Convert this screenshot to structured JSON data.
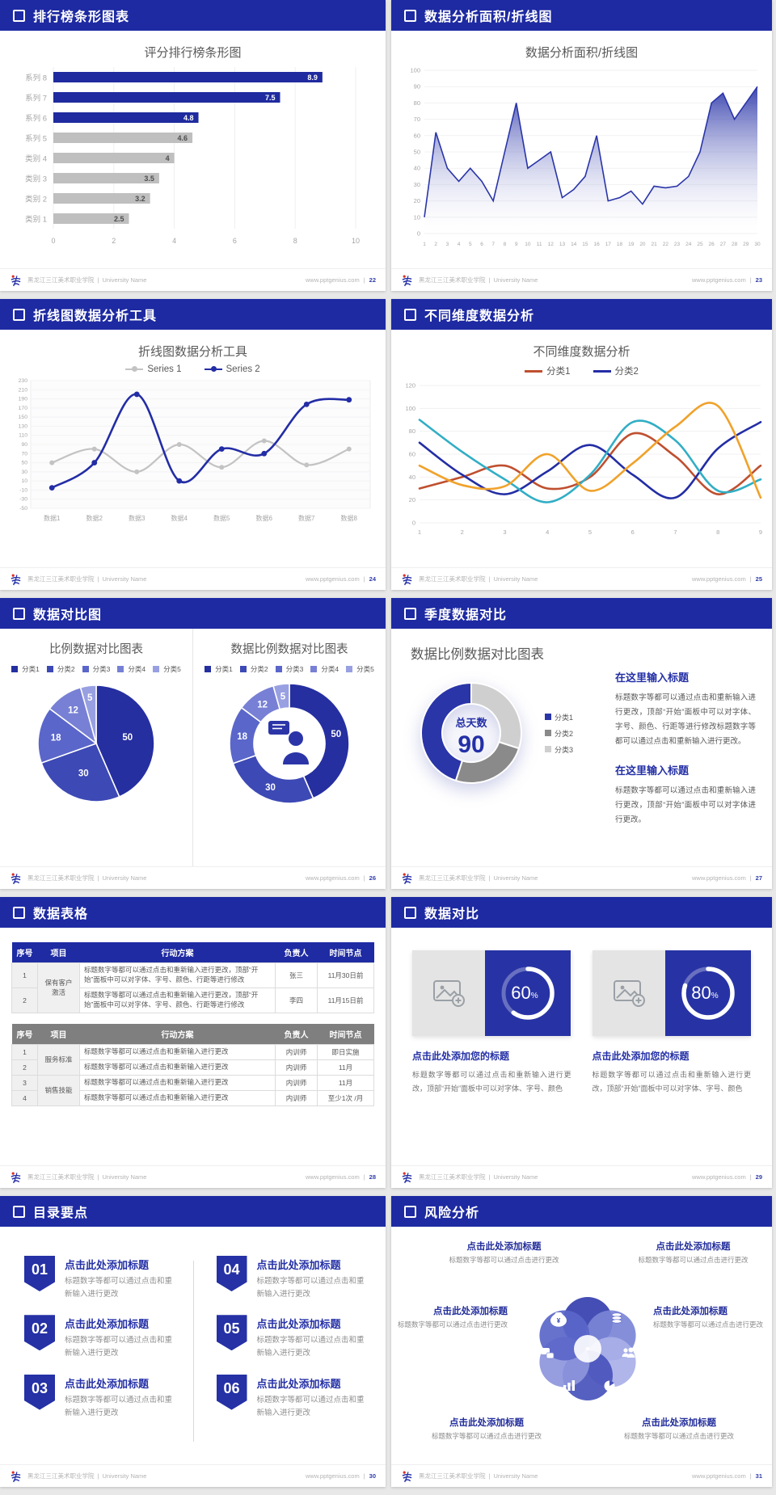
{
  "theme": {
    "header_blue": "#1e2aa2",
    "navy": "#222da0",
    "gray_bar": "#bfbfbf",
    "text_gray": "#595959",
    "muted": "#a6a6a6",
    "pie_colors": [
      "#252fa0",
      "#3d49b5",
      "#5a66c9",
      "#7780d5",
      "#98a0e2"
    ],
    "teal": "#31aec5",
    "orange": "#f0a22b",
    "red": "#bf4f2f",
    "donut_gray": "#8a8a8a",
    "donut_light": "#cfcfcf"
  },
  "footer": {
    "school": "黑龙江三江美术职业学院",
    "sep": "|",
    "university": "University Name",
    "site": "www.pptgenius.com"
  },
  "slides": [
    {
      "header": "排行榜条形图表",
      "page": "22",
      "chart_data": {
        "type": "bar",
        "orientation": "horizontal",
        "title": "评分排行榜条形图",
        "categories": [
          "系列 8",
          "系列 7",
          "系列 6",
          "系列 5",
          "类别 4",
          "类别 3",
          "类别 2",
          "类别 1"
        ],
        "values": [
          8.9,
          7.5,
          4.8,
          4.6,
          4,
          3.5,
          3.2,
          2.5
        ],
        "bar_colors": [
          "navy",
          "navy",
          "navy",
          "gray",
          "gray",
          "gray",
          "gray",
          "gray"
        ],
        "xlim": [
          0,
          10
        ],
        "xticks": [
          0,
          2,
          4,
          6,
          8,
          10
        ],
        "grid": true
      }
    },
    {
      "header": "数据分析面积/折线图",
      "page": "23",
      "chart_data": {
        "type": "area",
        "title": "数据分析面积/折线图",
        "x": [
          1,
          2,
          3,
          4,
          5,
          6,
          7,
          8,
          9,
          10,
          11,
          12,
          13,
          14,
          15,
          16,
          17,
          18,
          19,
          20,
          21,
          22,
          23,
          24,
          25,
          26,
          27,
          28,
          29,
          30
        ],
        "values": [
          10,
          62,
          40,
          32,
          40,
          32,
          20,
          50,
          80,
          40,
          45,
          50,
          22,
          27,
          35,
          60,
          20,
          22,
          26,
          18,
          29,
          28,
          29,
          35,
          50,
          80,
          86,
          70,
          80,
          90
        ],
        "ylim": [
          0,
          100
        ],
        "yticks": [
          0,
          10,
          20,
          30,
          40,
          50,
          60,
          70,
          80,
          90,
          100
        ],
        "grid": true
      }
    },
    {
      "header": "折线图数据分析工具",
      "page": "24",
      "chart_data": {
        "type": "line",
        "smooth": true,
        "title": "折线图数据分析工具",
        "categories": [
          "数据1",
          "数据2",
          "数据3",
          "数据4",
          "数据5",
          "数据6",
          "数据7",
          "数据8"
        ],
        "series": [
          {
            "name": "Series 1",
            "color": "#c3c3c3",
            "values": [
              50,
              80,
              30,
              90,
              40,
              98,
              45,
              80
            ]
          },
          {
            "name": "Series 2",
            "color": "#232da5",
            "values": [
              -5,
              50,
              200,
              10,
              80,
              70,
              178,
              188
            ]
          }
        ],
        "ylim": [
          -50,
          230
        ],
        "yticks": [
          230,
          210,
          190,
          170,
          150,
          130,
          110,
          90,
          70,
          50,
          30,
          10,
          -10,
          -30,
          -50
        ],
        "legend_position": "top",
        "grid": true
      }
    },
    {
      "header": "不同维度数据分析",
      "page": "25",
      "chart_data": {
        "type": "line",
        "smooth": true,
        "title": "不同维度数据分析",
        "x": [
          1,
          2,
          3,
          4,
          5,
          6,
          7,
          8,
          9
        ],
        "legend": [
          "分类1",
          "分类2"
        ],
        "series": [
          {
            "name": "分类1",
            "color": "#bf4f2f",
            "values": [
              30,
              40,
              50,
              30,
              40,
              78,
              58,
              25,
              50
            ]
          },
          {
            "name": "分类2",
            "color": "#232da5",
            "values": [
              70,
              42,
              25,
              45,
              68,
              42,
              22,
              65,
              88
            ]
          },
          {
            "name": "",
            "color": "#31aec5",
            "values": [
              90,
              62,
              38,
              18,
              42,
              88,
              72,
              28,
              38
            ]
          },
          {
            "name": "",
            "color": "#f0a22b",
            "values": [
              50,
              33,
              32,
              60,
              28,
              52,
              84,
              102,
              22
            ]
          }
        ],
        "ylim": [
          0,
          120
        ],
        "yticks": [
          0,
          20,
          40,
          60,
          80,
          100,
          120
        ],
        "legend_position": "top",
        "grid": true
      }
    },
    {
      "header": "数据对比图",
      "page": "26",
      "charts": [
        {
          "type": "pie",
          "title": "比例数据对比图表",
          "legend": [
            "分类1",
            "分类2",
            "分类3",
            "分类4",
            "分类5"
          ],
          "values": [
            50,
            30,
            18,
            12,
            5
          ]
        },
        {
          "type": "donut",
          "title": "数据比例数据对比图表",
          "legend": [
            "分类1",
            "分类2",
            "分类3",
            "分类4",
            "分类5"
          ],
          "values": [
            50,
            30,
            18,
            12,
            5
          ],
          "center_icon": "presenter-icon"
        }
      ]
    },
    {
      "header": "季度数据对比",
      "page": "27",
      "chart_data": {
        "type": "donut",
        "title": "数据比例数据对比图表",
        "center_label": "总天数",
        "center_value": "90",
        "legend": [
          "分类1",
          "分类2",
          "分类3"
        ],
        "values": [
          45,
          25,
          30
        ]
      },
      "blocks": [
        {
          "title": "在这里输入标题",
          "body": "标题数字等都可以通过点击和重新输入进行更改，顶部“开始”面板中可以对字体、字号、颜色、行距等进行修改标题数字等都可以通过点击和重新输入进行更改。"
        },
        {
          "title": "在这里输入标题",
          "body": "标题数字等都可以通过点击和重新输入进行更改，顶部“开始”面板中可以对字体进行更改。"
        }
      ]
    },
    {
      "header": "数据表格",
      "page": "28",
      "tables": [
        {
          "variant": "blue",
          "headers": [
            "序号",
            "项目",
            "行动方案",
            "负责人",
            "时间节点"
          ],
          "groups": [
            {
              "label": "保有客户激活",
              "span": 2
            }
          ],
          "rows": [
            {
              "no": "1",
              "action": "标题数字等都可以通过点击和重新输入进行更改，顶部“开始”面板中可以对字体、字号、颜色、行距等进行修改",
              "owner": "张三",
              "time": "11月30日前"
            },
            {
              "no": "2",
              "action": "标题数字等都可以通过点击和重新输入进行更改，顶部“开始”面板中可以对字体、字号、颜色、行距等进行修改",
              "owner": "李四",
              "time": "11月15日前"
            }
          ]
        },
        {
          "variant": "gray",
          "headers": [
            "序号",
            "项目",
            "行动方案",
            "负责人",
            "时间节点"
          ],
          "groups": [
            {
              "label": "服务标准",
              "span": 2
            },
            {
              "label": "销售技能",
              "span": 2
            }
          ],
          "rows": [
            {
              "no": "1",
              "action": "标题数字等都可以通过点击和重新输入进行更改",
              "owner": "内训师",
              "time": "即日实施"
            },
            {
              "no": "2",
              "action": "标题数字等都可以通过点击和重新输入进行更改",
              "owner": "内训师",
              "time": "11月"
            },
            {
              "no": "3",
              "action": "标题数字等都可以通过点击和重新输入进行更改",
              "owner": "内训师",
              "time": "11月"
            },
            {
              "no": "4",
              "action": "标题数字等都可以通过点击和重新输入进行更改",
              "owner": "内训师",
              "time": "至少1次 /月"
            }
          ]
        }
      ]
    },
    {
      "header": "数据对比",
      "page": "29",
      "cards": [
        {
          "percent": 60,
          "unit": "%",
          "title": "点击此处添加您的标题",
          "body": "标题数字等都可以通过点击和重新输入进行更改，顶部“开始”面板中可以对字体、字号、颜色"
        },
        {
          "percent": 80,
          "unit": "%",
          "title": "点击此处添加您的标题",
          "body": "标题数字等都可以通过点击和重新输入进行更改，顶部“开始”面板中可以对字体、字号、颜色"
        }
      ]
    },
    {
      "header": "目录要点",
      "page": "30",
      "items": [
        {
          "num": "01",
          "title": "点击此处添加标题",
          "body": "标题数字等都可以通过点击和重新输入进行更改"
        },
        {
          "num": "02",
          "title": "点击此处添加标题",
          "body": "标题数字等都可以通过点击和重新输入进行更改"
        },
        {
          "num": "03",
          "title": "点击此处添加标题",
          "body": "标题数字等都可以通过点击和重新输入进行更改"
        },
        {
          "num": "04",
          "title": "点击此处添加标题",
          "body": "标题数字等都可以通过点击和重新输入进行更改"
        },
        {
          "num": "05",
          "title": "点击此处添加标题",
          "body": "标题数字等都可以通过点击和重新输入进行更改"
        },
        {
          "num": "06",
          "title": "点击此处添加标题",
          "body": "标题数字等都可以通过点击和重新输入进行更改"
        }
      ]
    },
    {
      "header": "风险分析",
      "page": "31",
      "items": [
        {
          "title": "点击此处添加标题",
          "body": "标题数字等都可以通过点击进行更改"
        },
        {
          "title": "点击此处添加标题",
          "body": "标题数字等都可以通过点击进行更改"
        },
        {
          "title": "点击此处添加标题",
          "body": "标题数字等都可以通过点击进行更改"
        },
        {
          "title": "点击此处添加标题",
          "body": "标题数字等都可以通过点击进行更改"
        },
        {
          "title": "点击此处添加标题",
          "body": "标题数字等都可以通过点击进行更改"
        },
        {
          "title": "点击此处添加标题",
          "body": "标题数字等都可以通过点击进行更改"
        }
      ],
      "icons": [
        "money-bag",
        "coins",
        "chat-bubbles",
        "people",
        "bar-chart",
        "pie-chart"
      ]
    }
  ]
}
